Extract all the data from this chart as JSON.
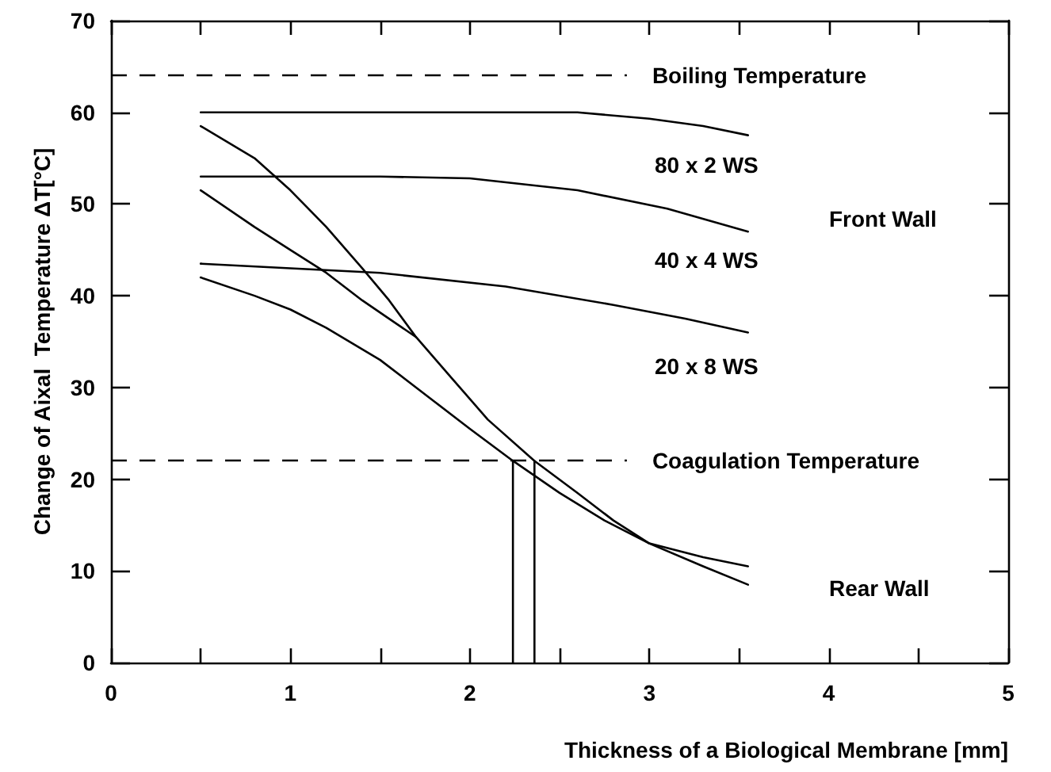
{
  "chart_data": {
    "type": "line",
    "xlabel": "Thickness of a Biological Membrane [mm]",
    "ylabel": "Change of Aixal  Temperature ΔT[°C]",
    "xlim": [
      0,
      5
    ],
    "ylim": [
      0,
      70
    ],
    "xticks": [
      0,
      {
        "value": 0.5,
        "label": null
      },
      1,
      {
        "value": 1.5,
        "label": null
      },
      2,
      {
        "value": 2.5,
        "label": null
      },
      3,
      {
        "value": 3.5,
        "label": null
      },
      4,
      {
        "value": 4.5,
        "label": null
      },
      5
    ],
    "yticks": [
      0,
      10,
      20,
      30,
      40,
      50,
      60,
      70
    ],
    "grid": false,
    "marker": "none",
    "line_style": "solid",
    "series": [
      {
        "color": "#000000",
        "x": [
          0.5,
          1.0,
          1.5,
          2.0,
          2.6,
          3.0,
          3.3,
          3.55
        ],
        "values": [
          60,
          60,
          60,
          60,
          60,
          59.3,
          58.5,
          57.5
        ]
      },
      {
        "color": "#000000",
        "x": [
          0.5,
          1.0,
          1.5,
          2.0,
          2.6,
          3.1,
          3.55
        ],
        "values": [
          53,
          53,
          53,
          52.8,
          51.5,
          49.5,
          47
        ]
      },
      {
        "color": "#000000",
        "x": [
          0.5,
          1.0,
          1.5,
          2.2,
          2.8,
          3.2,
          3.55
        ],
        "values": [
          43.5,
          43,
          42.5,
          41,
          39,
          37.5,
          36
        ]
      },
      {
        "color": "#000000",
        "x": [
          0.5,
          0.8,
          1.0,
          1.2,
          1.4,
          1.55,
          1.7,
          1.9,
          2.1,
          2.36,
          2.6,
          2.8,
          3.0,
          3.3,
          3.55
        ],
        "values": [
          58.5,
          55,
          51.5,
          47.5,
          43,
          39.5,
          35.5,
          31,
          26.5,
          22,
          18.5,
          15.5,
          13,
          10.5,
          8.5
        ]
      },
      {
        "color": "#000000",
        "x": [
          0.5,
          0.8,
          1.0,
          1.2,
          1.4,
          1.55,
          1.7
        ],
        "values": [
          51.5,
          47.5,
          45,
          42.5,
          39.5,
          37.5,
          35.5
        ]
      },
      {
        "color": "#000000",
        "x": [
          0.5,
          0.8,
          1.0,
          1.2,
          1.5,
          1.8,
          2.0,
          2.24,
          2.5,
          2.75,
          3.0,
          3.3,
          3.55
        ],
        "values": [
          42,
          40,
          38.5,
          36.5,
          33,
          28.5,
          25.5,
          22,
          18.5,
          15.5,
          13,
          11.5,
          10.5
        ]
      },
      {
        "color": "#000000",
        "x": [
          2.24,
          2.24
        ],
        "values": [
          0,
          22
        ]
      },
      {
        "color": "#000000",
        "x": [
          2.36,
          2.36
        ],
        "values": [
          0,
          22
        ]
      }
    ],
    "ref_lines": [
      {
        "axis": "y",
        "value": 64,
        "label": "Boiling Temperature",
        "color": "#000000",
        "line_style": "dashed"
      },
      {
        "axis": "y",
        "value": 22,
        "label": "Coagulation Temperature",
        "color": "#000000",
        "line_style": "dashed"
      }
    ],
    "annotations": [
      "80 x 2 WS",
      "40 x 4 WS",
      "20 x 8 WS",
      "Front Wall",
      "Rear Wall"
    ]
  }
}
